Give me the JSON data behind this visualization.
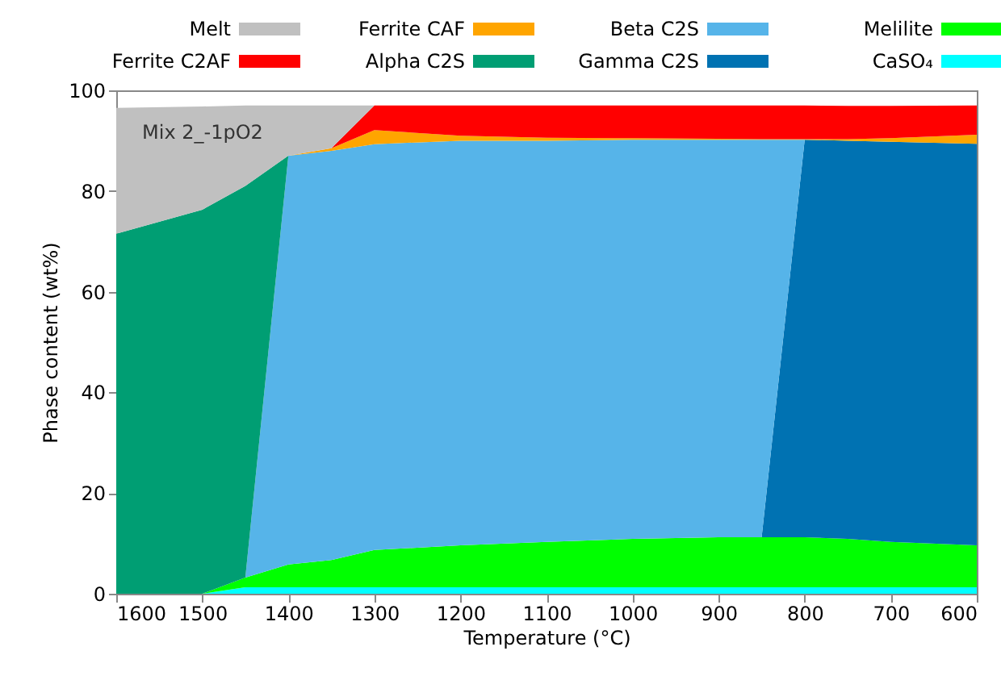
{
  "chart_data": {
    "type": "area",
    "stacked": true,
    "xlabel": "Temperature (°C)",
    "ylabel": "Phase content (wt%)",
    "x": [
      1600,
      1500,
      1450,
      1400,
      1350,
      1300,
      1200,
      1100,
      1000,
      900,
      850,
      800,
      750,
      700,
      600
    ],
    "xlim": [
      1600,
      600
    ],
    "xticks": [
      1600,
      1500,
      1400,
      1300,
      1200,
      1100,
      1000,
      900,
      800,
      700,
      600
    ],
    "ylim": [
      0,
      100
    ],
    "yticks": [
      0,
      20,
      40,
      60,
      80,
      100
    ],
    "grid": false,
    "legend": "top",
    "annotations": [
      "Mix 2_-1pO2"
    ],
    "series": [
      {
        "name": "CaSO₄",
        "color": "#00ffff",
        "values": [
          null,
          0,
          1.3,
          1.3,
          1.3,
          1.3,
          1.3,
          1.3,
          1.3,
          1.3,
          1.3,
          1.3,
          1.3,
          1.3,
          1.3
        ]
      },
      {
        "name": "Melilite",
        "color": "#00ff00",
        "values": [
          null,
          0,
          1.9,
          4.5,
          5.4,
          7.4,
          8.3,
          9.0,
          9.6,
          9.9,
          9.9,
          9.9,
          9.6,
          9.0,
          8.3
        ]
      },
      {
        "name": "Gamma C2S",
        "color": "#0072b2",
        "values": [
          null,
          null,
          null,
          null,
          null,
          null,
          null,
          null,
          null,
          null,
          0,
          79,
          79.1,
          79.5,
          79.8
        ]
      },
      {
        "name": "Beta C2S",
        "color": "#56b4e9",
        "values": [
          null,
          null,
          0,
          81.2,
          81.3,
          80.6,
          80.4,
          79.7,
          79.3,
          79,
          79,
          0,
          null,
          null,
          null
        ]
      },
      {
        "name": "Alpha C2S",
        "color": "#009e73",
        "values": [
          71.5,
          76.3,
          77.8,
          0,
          null,
          null,
          null,
          null,
          null,
          null,
          null,
          null,
          null,
          null,
          null
        ]
      },
      {
        "name": "Ferrite CAF",
        "color": "#ffa500",
        "values": [
          null,
          null,
          null,
          0,
          0.5,
          2.8,
          1.0,
          0.6,
          0.3,
          0.2,
          0.1,
          0.1,
          0.3,
          0.7,
          1.8
        ]
      },
      {
        "name": "Ferrite C2AF",
        "color": "#ff0000",
        "values": [
          null,
          null,
          null,
          null,
          0,
          4.9,
          6.0,
          6.4,
          6.5,
          6.6,
          6.7,
          6.7,
          6.6,
          6.4,
          5.8
        ]
      },
      {
        "name": "Melt",
        "color": "#c0c0c0",
        "values": [
          25,
          20.5,
          16,
          10,
          8.5,
          0,
          null,
          null,
          null,
          null,
          null,
          null,
          null,
          null,
          null
        ]
      }
    ]
  }
}
